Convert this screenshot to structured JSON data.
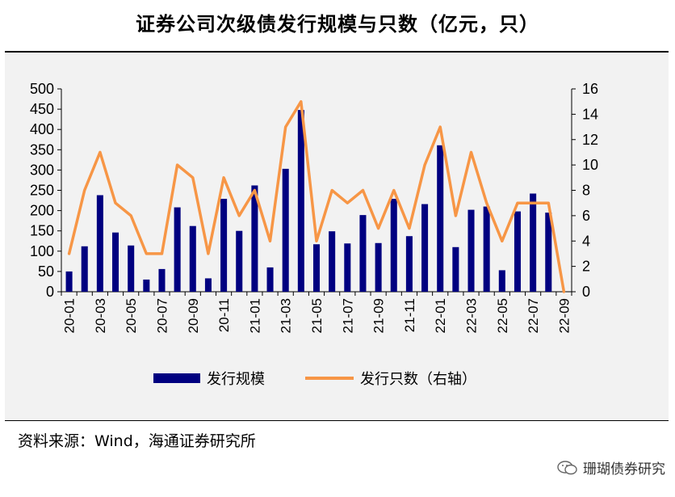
{
  "title": "证券公司次级债发行规模与只数（亿元，只）",
  "source": "资料来源：Wind，海通证券研究所",
  "watermark": "珊瑚债券研究",
  "colors": {
    "bar": "#000080",
    "line": "#f79646",
    "background": "#f2f2f2"
  },
  "chart_data": {
    "type": "bar+line",
    "categories": [
      "20-01",
      "20-02",
      "20-03",
      "20-04",
      "20-05",
      "20-06",
      "20-07",
      "20-08",
      "20-09",
      "20-10",
      "20-11",
      "20-12",
      "21-01",
      "21-02",
      "21-03",
      "21-04",
      "21-05",
      "21-06",
      "21-07",
      "21-08",
      "21-09",
      "21-10",
      "21-11",
      "21-12",
      "22-01",
      "22-02",
      "22-03",
      "22-04",
      "22-05",
      "22-06",
      "22-07",
      "22-08",
      "22-09"
    ],
    "x_tick_labels": [
      "20-01",
      "20-03",
      "20-05",
      "20-07",
      "20-09",
      "20-11",
      "21-01",
      "21-03",
      "21-05",
      "21-07",
      "21-09",
      "21-11",
      "22-01",
      "22-03",
      "22-05",
      "22-07",
      "22-09"
    ],
    "series": [
      {
        "name": "发行规模",
        "type": "bar",
        "axis": "left",
        "values": [
          50,
          112,
          238,
          146,
          114,
          30,
          56,
          208,
          162,
          33,
          229,
          150,
          262,
          60,
          303,
          448,
          117,
          149,
          119,
          189,
          120,
          229,
          137,
          216,
          361,
          110,
          202,
          210,
          53,
          198,
          242,
          195,
          0
        ]
      },
      {
        "name": "发行只数（右轴）",
        "type": "line",
        "axis": "right",
        "values": [
          3,
          8,
          11,
          7,
          6,
          3,
          3,
          10,
          9,
          3,
          9,
          6,
          8,
          4,
          13,
          15,
          4,
          8,
          7,
          8,
          5,
          8,
          5,
          10,
          13,
          6,
          11,
          7,
          4,
          7,
          7,
          7,
          0
        ]
      }
    ],
    "y_left": {
      "min": 0,
      "max": 500,
      "ticks": [
        "0",
        "50",
        "100",
        "150",
        "200",
        "250",
        "300",
        "350",
        "400",
        "450",
        "500"
      ]
    },
    "y_right": {
      "min": 0,
      "max": 16,
      "ticks": [
        "0",
        "2",
        "4",
        "6",
        "8",
        "10",
        "12",
        "14",
        "16"
      ]
    },
    "legend": [
      {
        "label": "发行规模",
        "kind": "bar"
      },
      {
        "label": "发行只数（右轴）",
        "kind": "line"
      }
    ],
    "legend_position": "bottom"
  }
}
